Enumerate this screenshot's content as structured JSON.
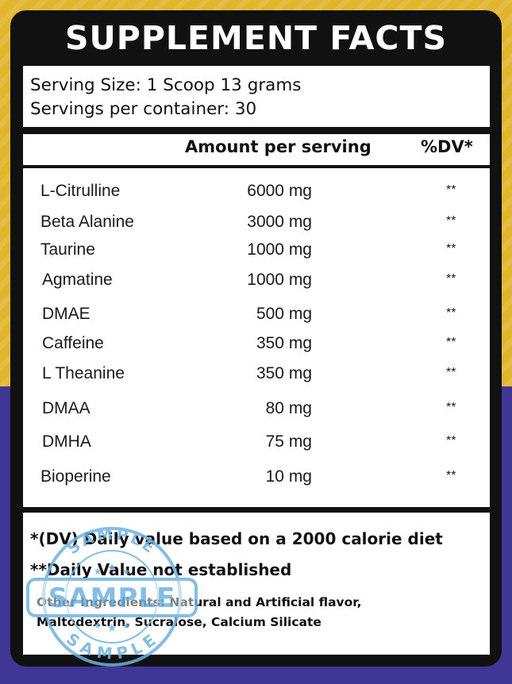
{
  "title": "SUPPLEMENT FACTS",
  "serving": {
    "size": "Serving Size: 1 Scoop 13 grams",
    "per_container": "Servings per container: 30"
  },
  "columns": {
    "amount": "Amount per serving",
    "dv": "%DV*"
  },
  "ingredients": [
    {
      "name": "L-Citrulline",
      "amount": "6000 mg",
      "dv": "**"
    },
    {
      "name": "Beta Alanine",
      "amount": "3000 mg",
      "dv": "**"
    },
    {
      "name": "Taurine",
      "amount": "1000 mg",
      "dv": "**"
    },
    {
      "name": "Agmatine",
      "amount": "1000 mg",
      "dv": "**"
    },
    {
      "name": "DMAE",
      "amount": "500 mg",
      "dv": "**"
    },
    {
      "name": "Caffeine",
      "amount": "350 mg",
      "dv": "**"
    },
    {
      "name": "L Theanine",
      "amount": "350 mg",
      "dv": "**"
    },
    {
      "name": "DMAA",
      "amount": "80 mg",
      "dv": "**"
    },
    {
      "name": "DMHA",
      "amount": "75 mg",
      "dv": "**"
    },
    {
      "name": "Bioperine",
      "amount": "10 mg",
      "dv": "**"
    }
  ],
  "footnotes": {
    "dv_note": "*(DV) Daily value based on a 2000 calorie diet",
    "not_established": "**Daily Value not established",
    "other_line1": "Other Ingredients: Natural and Artificial flavor,",
    "other_line2": "Maltodextrin, Sucralose, Calcium Silicate"
  },
  "stamp": {
    "word": "SAMPLE",
    "top_arc": "SAMPLE",
    "bottom_arc": "SAMPLE"
  },
  "colors": {
    "background_top": "#e1b52e",
    "background_bottom": "#3f3795",
    "panel": "#111111",
    "stamp": "#6fb3e0"
  }
}
